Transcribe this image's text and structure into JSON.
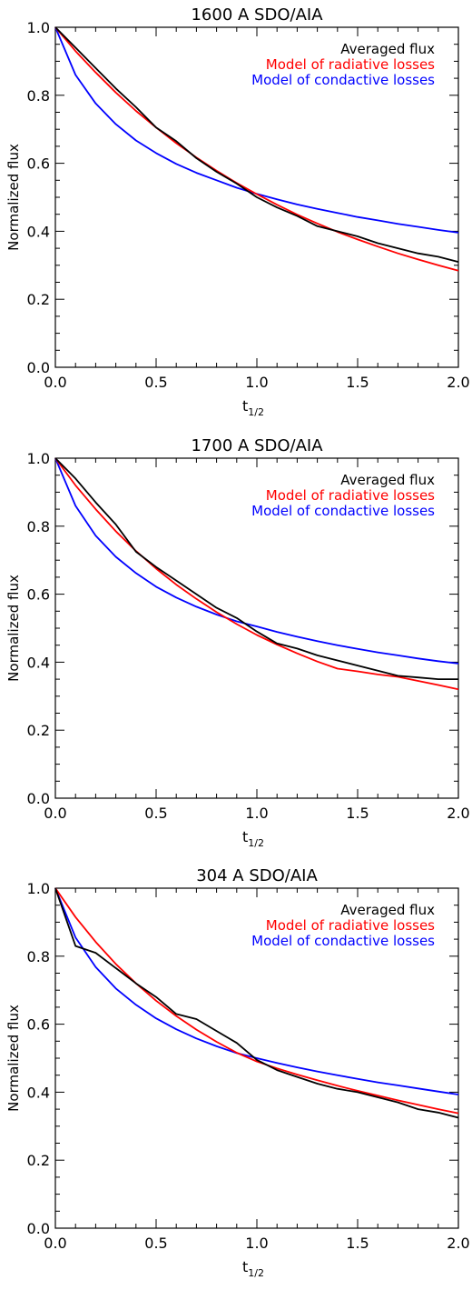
{
  "chart_data": [
    {
      "type": "line",
      "title": "1600 A SDO/AIA",
      "xlabel": "t",
      "xlabel_subscript": "1/2",
      "ylabel": "Normalized flux",
      "xlim": [
        0,
        2.0
      ],
      "ylim": [
        0,
        1.0
      ],
      "xticks": [
        "0.0",
        "0.5",
        "1.0",
        "1.5",
        "2.0"
      ],
      "yticks": [
        "0.0",
        "0.2",
        "0.4",
        "0.6",
        "0.8",
        "1.0"
      ],
      "legend_position": "top-right",
      "series": [
        {
          "name": "Averaged flux",
          "color": "#000000",
          "x": [
            0.0,
            0.1,
            0.2,
            0.3,
            0.4,
            0.5,
            0.6,
            0.7,
            0.8,
            0.9,
            1.0,
            1.1,
            1.2,
            1.3,
            1.4,
            1.5,
            1.6,
            1.7,
            1.8,
            1.9,
            2.0
          ],
          "y": [
            1.0,
            0.94,
            0.88,
            0.82,
            0.765,
            0.705,
            0.665,
            0.615,
            0.575,
            0.54,
            0.5,
            0.47,
            0.445,
            0.415,
            0.4,
            0.385,
            0.365,
            0.35,
            0.335,
            0.325,
            0.31
          ]
        },
        {
          "name": "Model of radiative losses",
          "color": "#ff0000",
          "x": [
            0.0,
            0.1,
            0.2,
            0.3,
            0.4,
            0.5,
            0.6,
            0.7,
            0.8,
            0.9,
            1.0,
            1.1,
            1.2,
            1.3,
            1.4,
            1.5,
            1.6,
            1.7,
            1.8,
            1.9,
            2.0
          ],
          "y": [
            1.0,
            0.93,
            0.867,
            0.808,
            0.754,
            0.705,
            0.659,
            0.617,
            0.578,
            0.542,
            0.509,
            0.478,
            0.449,
            0.423,
            0.398,
            0.376,
            0.355,
            0.335,
            0.317,
            0.3,
            0.284
          ]
        },
        {
          "name": "Model of condactive losses",
          "color": "#0000ff",
          "x": [
            0.0,
            0.1,
            0.2,
            0.3,
            0.4,
            0.5,
            0.6,
            0.7,
            0.8,
            0.9,
            1.0,
            1.1,
            1.2,
            1.3,
            1.4,
            1.5,
            1.6,
            1.7,
            1.8,
            1.9,
            2.0
          ],
          "y": [
            1.0,
            0.86,
            0.776,
            0.715,
            0.667,
            0.63,
            0.598,
            0.572,
            0.55,
            0.528,
            0.51,
            0.494,
            0.479,
            0.466,
            0.454,
            0.442,
            0.432,
            0.422,
            0.413,
            0.404,
            0.396
          ]
        }
      ]
    },
    {
      "type": "line",
      "title": "1700 A SDO/AIA",
      "xlabel": "t",
      "xlabel_subscript": "1/2",
      "ylabel": "Normalized flux",
      "xlim": [
        0,
        2.0
      ],
      "ylim": [
        0,
        1.0
      ],
      "xticks": [
        "0.0",
        "0.5",
        "1.0",
        "1.5",
        "2.0"
      ],
      "yticks": [
        "0.0",
        "0.2",
        "0.4",
        "0.6",
        "0.8",
        "1.0"
      ],
      "legend_position": "top-right",
      "series": [
        {
          "name": "Averaged flux",
          "color": "#000000",
          "x": [
            0.0,
            0.1,
            0.2,
            0.3,
            0.4,
            0.5,
            0.6,
            0.7,
            0.8,
            0.9,
            1.0,
            1.1,
            1.2,
            1.3,
            1.4,
            1.5,
            1.6,
            1.7,
            1.8,
            1.9,
            2.0
          ],
          "y": [
            1.0,
            0.94,
            0.87,
            0.805,
            0.725,
            0.68,
            0.64,
            0.6,
            0.56,
            0.53,
            0.49,
            0.455,
            0.44,
            0.42,
            0.405,
            0.39,
            0.375,
            0.36,
            0.355,
            0.35,
            0.35
          ]
        },
        {
          "name": "Model of radiative losses",
          "color": "#ff0000",
          "x": [
            0.0,
            0.1,
            0.2,
            0.3,
            0.4,
            0.5,
            0.6,
            0.7,
            0.8,
            0.9,
            1.0,
            1.1,
            1.2,
            1.3,
            1.4,
            1.5,
            1.6,
            1.7,
            1.8,
            1.9,
            2.0
          ],
          "y": [
            1.0,
            0.92,
            0.85,
            0.785,
            0.727,
            0.675,
            0.628,
            0.586,
            0.547,
            0.512,
            0.48,
            0.452,
            0.426,
            0.402,
            0.381,
            0.373,
            0.364,
            0.357,
            0.345,
            0.333,
            0.32
          ]
        },
        {
          "name": "Model of condactive losses",
          "color": "#0000ff",
          "x": [
            0.0,
            0.1,
            0.2,
            0.3,
            0.4,
            0.5,
            0.6,
            0.7,
            0.8,
            0.9,
            1.0,
            1.1,
            1.2,
            1.3,
            1.4,
            1.5,
            1.6,
            1.7,
            1.8,
            1.9,
            2.0
          ],
          "y": [
            1.0,
            0.86,
            0.772,
            0.71,
            0.662,
            0.622,
            0.59,
            0.563,
            0.54,
            0.52,
            0.505,
            0.489,
            0.475,
            0.462,
            0.45,
            0.439,
            0.429,
            0.42,
            0.411,
            0.403,
            0.396
          ]
        }
      ]
    },
    {
      "type": "line",
      "title": "304 A SDO/AIA",
      "xlabel": "t",
      "xlabel_subscript": "1/2",
      "ylabel": "Normalized flux",
      "xlim": [
        0,
        2.0
      ],
      "ylim": [
        0,
        1.0
      ],
      "xticks": [
        "0.0",
        "0.5",
        "1.0",
        "1.5",
        "2.0"
      ],
      "yticks": [
        "0.0",
        "0.2",
        "0.4",
        "0.6",
        "0.8",
        "1.0"
      ],
      "legend_position": "top-right",
      "series": [
        {
          "name": "Averaged flux",
          "color": "#000000",
          "x": [
            0.0,
            0.1,
            0.2,
            0.3,
            0.4,
            0.5,
            0.6,
            0.7,
            0.8,
            0.9,
            1.0,
            1.1,
            1.2,
            1.3,
            1.4,
            1.5,
            1.6,
            1.7,
            1.8,
            1.9,
            2.0
          ],
          "y": [
            1.0,
            0.83,
            0.81,
            0.765,
            0.72,
            0.68,
            0.63,
            0.615,
            0.58,
            0.545,
            0.495,
            0.465,
            0.445,
            0.425,
            0.41,
            0.4,
            0.385,
            0.37,
            0.35,
            0.34,
            0.325
          ]
        },
        {
          "name": "Model of radiative losses",
          "color": "#ff0000",
          "x": [
            0.0,
            0.1,
            0.2,
            0.3,
            0.4,
            0.5,
            0.6,
            0.7,
            0.8,
            0.9,
            1.0,
            1.1,
            1.2,
            1.3,
            1.4,
            1.5,
            1.6,
            1.7,
            1.8,
            1.9,
            2.0
          ],
          "y": [
            1.0,
            0.915,
            0.842,
            0.777,
            0.72,
            0.669,
            0.624,
            0.584,
            0.548,
            0.516,
            0.49,
            0.47,
            0.452,
            0.435,
            0.419,
            0.404,
            0.39,
            0.376,
            0.363,
            0.35,
            0.338
          ]
        },
        {
          "name": "Model of condactive losses",
          "color": "#0000ff",
          "x": [
            0.0,
            0.1,
            0.2,
            0.3,
            0.4,
            0.5,
            0.6,
            0.7,
            0.8,
            0.9,
            1.0,
            1.1,
            1.2,
            1.3,
            1.4,
            1.5,
            1.6,
            1.7,
            1.8,
            1.9,
            2.0
          ],
          "y": [
            1.0,
            0.855,
            0.768,
            0.705,
            0.657,
            0.617,
            0.585,
            0.558,
            0.535,
            0.515,
            0.5,
            0.486,
            0.473,
            0.461,
            0.45,
            0.439,
            0.429,
            0.42,
            0.411,
            0.402,
            0.393
          ]
        }
      ]
    }
  ]
}
